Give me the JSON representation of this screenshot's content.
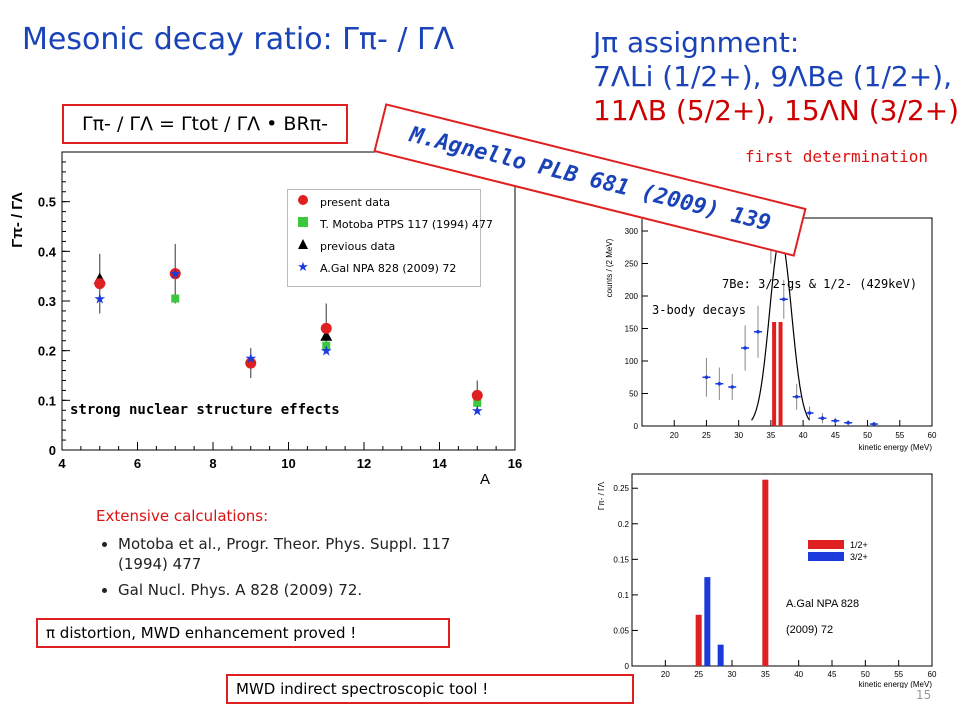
{
  "title": "Mesonic decay ratio: Γπ- / ΓΛ",
  "jpi": {
    "heading": "Jπ assignment:",
    "line2": "7ΛLi (1/2+), 9ΛBe (1/2+),",
    "line3": "11ΛB (5/2+), 15ΛN (3/2+)",
    "note": "first determination"
  },
  "formula": "Γπ- / ΓΛ = Γtot / ΓΛ • BRπ-",
  "reference_stamp": "M.Agnello PLB 681 (2009) 139",
  "left_chart_text": {
    "ylabel": "Γπ- / ΓΛ",
    "xlabel": "A",
    "annotation": "strong nuclear structure effects"
  },
  "legend": [
    {
      "label": "present data",
      "symbol": "red-circle-icon",
      "color": "#e02020"
    },
    {
      "label": "T. Motoba PTPS 117 (1994) 477",
      "symbol": "green-square-icon",
      "color": "#3cc83c"
    },
    {
      "label": "previous data",
      "symbol": "black-triangle-icon",
      "color": "#000000"
    },
    {
      "label": "A.Gal NPA 828 (2009) 72",
      "symbol": "blue-star-icon",
      "color": "#1a3adc"
    }
  ],
  "chart_data": [
    {
      "type": "scatter",
      "title": "",
      "xlabel": "A",
      "ylabel": "Γπ- / ΓΛ",
      "xlim": [
        4,
        16
      ],
      "ylim": [
        0,
        0.6
      ],
      "xticks": [
        4,
        6,
        8,
        10,
        12,
        14,
        16
      ],
      "yticks": [
        0,
        0.1,
        0.2,
        0.3,
        0.4,
        0.5
      ],
      "series": [
        {
          "name": "present data",
          "marker": "circle",
          "color": "#e02020",
          "x": [
            5,
            7,
            9,
            11,
            15
          ],
          "y": [
            0.335,
            0.355,
            0.175,
            0.245,
            0.11
          ],
          "yerr": [
            0.06,
            0.06,
            0.03,
            0.05,
            0.03
          ]
        },
        {
          "name": "T. Motoba PTPS 117 (1994) 477",
          "marker": "square",
          "color": "#3cc83c",
          "x": [
            7,
            9,
            11,
            15
          ],
          "y": [
            0.305,
            0.175,
            0.21,
            0.095
          ]
        },
        {
          "name": "previous data",
          "marker": "triangle",
          "color": "#000000",
          "x": [
            5,
            11
          ],
          "y": [
            0.345,
            0.23
          ]
        },
        {
          "name": "A.Gal NPA 828 (2009) 72",
          "marker": "star",
          "color": "#1a3adc",
          "x": [
            5,
            7,
            9,
            11,
            15
          ],
          "y": [
            0.305,
            0.355,
            0.185,
            0.2,
            0.08
          ]
        }
      ]
    },
    {
      "type": "histogram",
      "xlabel": "kinetic energy (MeV)",
      "ylabel": "counts / (2 MeV)",
      "xlim": [
        15,
        60
      ],
      "ylim": [
        0,
        320
      ],
      "xticks": [
        20,
        25,
        30,
        35,
        40,
        45,
        50,
        55,
        60
      ],
      "yticks": [
        0,
        50,
        100,
        150,
        200,
        250,
        300
      ],
      "annotations": [
        "7Be: 3/2-gs & 1/2- (429keV)",
        "3-body decays"
      ],
      "data_points": {
        "x": [
          25,
          27,
          29,
          31,
          33,
          35,
          37,
          39,
          41,
          43,
          45,
          47,
          51
        ],
        "y": [
          75,
          65,
          60,
          120,
          145,
          275,
          195,
          45,
          20,
          12,
          8,
          5,
          3
        ],
        "yerr": [
          30,
          25,
          20,
          35,
          40,
          25,
          30,
          20,
          10,
          8,
          5,
          4,
          3
        ]
      },
      "red_bars": {
        "x": [
          35.5,
          36.5
        ],
        "y": [
          160,
          160
        ]
      }
    },
    {
      "type": "bar",
      "xlabel": "kinetic energy (MeV)",
      "ylabel": "Γπ- / ΓΛ",
      "xlim": [
        15,
        60
      ],
      "ylim": [
        0,
        0.27
      ],
      "xticks": [
        20,
        25,
        30,
        35,
        40,
        45,
        50,
        55,
        60
      ],
      "yticks": [
        0,
        0.05,
        0.1,
        0.15,
        0.2,
        0.25
      ],
      "annotation": [
        "A.Gal NPA 828",
        "(2009) 72"
      ],
      "series": [
        {
          "name": "1/2+",
          "color": "#e02020",
          "x": [
            25,
            35
          ],
          "values": [
            0.072,
            0.262
          ]
        },
        {
          "name": "3/2+",
          "color": "#1a3adc",
          "x": [
            26.3,
            28.3
          ],
          "values": [
            0.125,
            0.03
          ]
        }
      ]
    }
  ],
  "calculations": {
    "heading": "Extensive calculations:",
    "items": [
      "Motoba et al., Progr. Theor. Phys. Suppl. 117 (1994) 477",
      "Gal Nucl. Phys. A 828 (2009) 72."
    ]
  },
  "box1": "π distortion, MWD enhancement proved !",
  "box2": "MWD indirect spectroscopic tool !",
  "page_number": "15"
}
